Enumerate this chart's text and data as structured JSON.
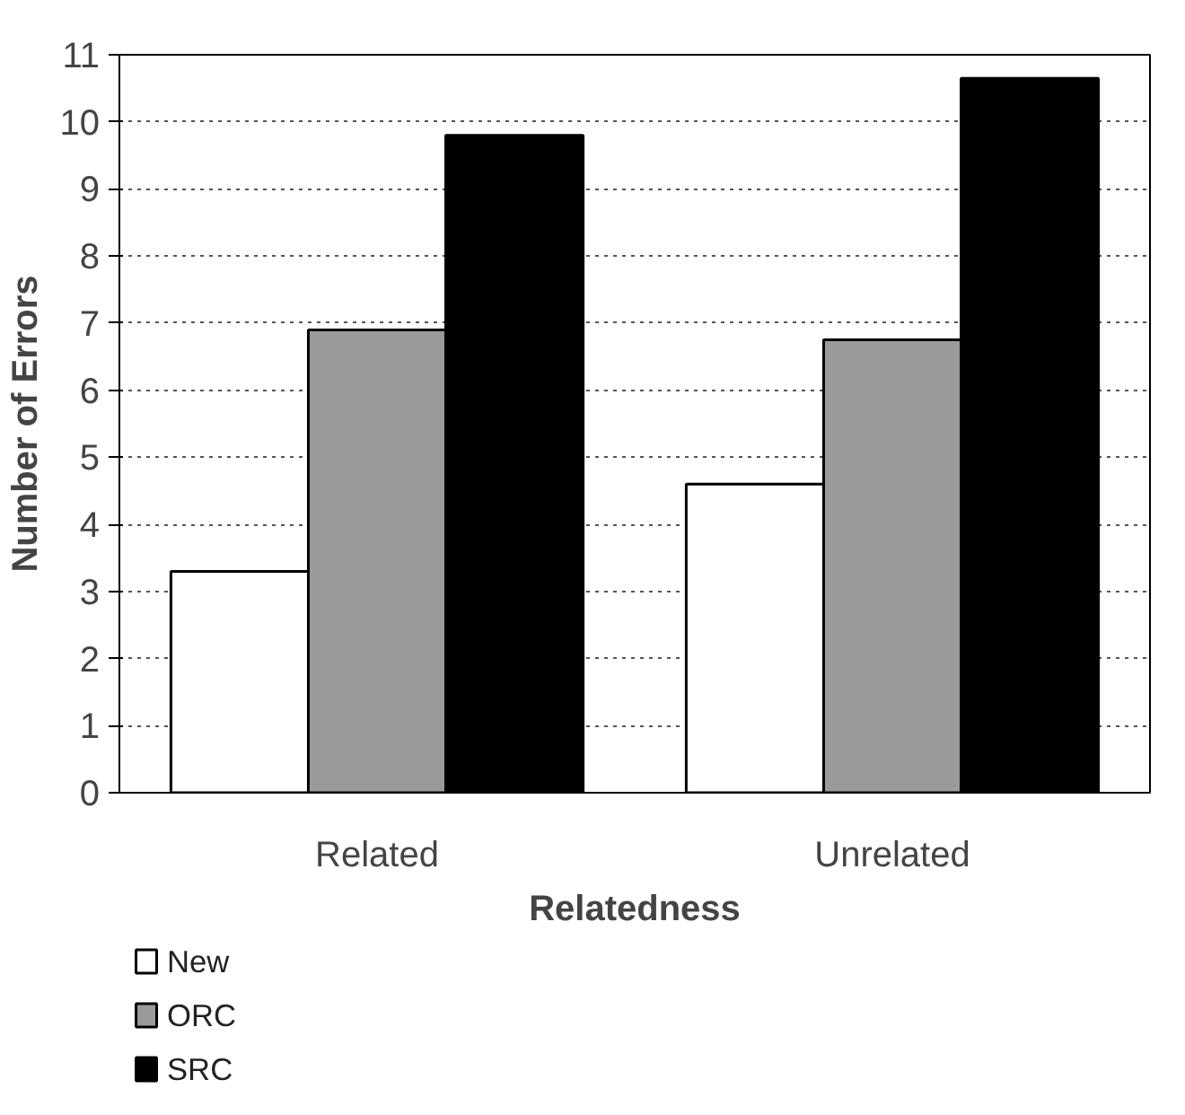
{
  "chart_data": {
    "type": "bar",
    "xlabel": "Relatedness",
    "ylabel": "Number of Errors",
    "categories": [
      "Related",
      "Unrelated"
    ],
    "series": [
      {
        "name": "New",
        "color": "#ffffff",
        "values": [
          3.3,
          4.6
        ]
      },
      {
        "name": "ORC",
        "color": "#9a9a9a",
        "values": [
          6.9,
          6.75
        ]
      },
      {
        "name": "SRC",
        "color": "#000000",
        "values": [
          9.8,
          10.65
        ]
      }
    ],
    "ylim": [
      0,
      11
    ],
    "yticks": [
      0,
      1,
      2,
      3,
      4,
      5,
      6,
      7,
      8,
      9,
      10,
      11
    ],
    "grid": "y",
    "legend": "bottom left"
  }
}
